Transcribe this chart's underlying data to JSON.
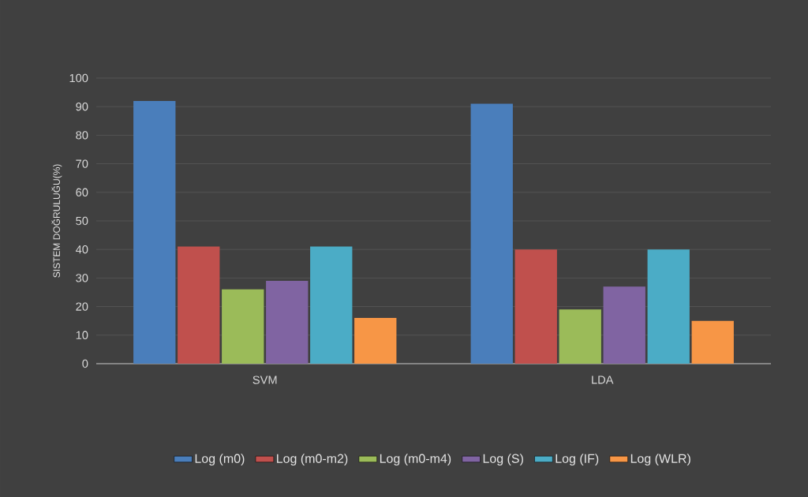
{
  "chart_data": {
    "type": "bar",
    "ylabel": "SISTEM DOĞRULUĞU(%)",
    "categories": [
      "SVM",
      "LDA"
    ],
    "series": [
      {
        "name": "Log (m0)",
        "color": "#4a7ebb",
        "values": [
          92,
          91
        ]
      },
      {
        "name": "Log (m0-m2)",
        "color": "#c0504d",
        "values": [
          41,
          40
        ]
      },
      {
        "name": "Log (m0-m4)",
        "color": "#9bbb59",
        "values": [
          26,
          19
        ]
      },
      {
        "name": "Log (S)",
        "color": "#8064a2",
        "values": [
          29,
          27
        ]
      },
      {
        "name": "Log (IF)",
        "color": "#4bacc6",
        "values": [
          41,
          40
        ]
      },
      {
        "name": "Log (WLR)",
        "color": "#f79646",
        "values": [
          16,
          15
        ]
      }
    ],
    "ylim": [
      0,
      100
    ],
    "yticks": [
      0,
      10,
      20,
      30,
      40,
      50,
      60,
      70,
      80,
      90,
      100
    ],
    "grid": "y",
    "legend": "bottom"
  }
}
